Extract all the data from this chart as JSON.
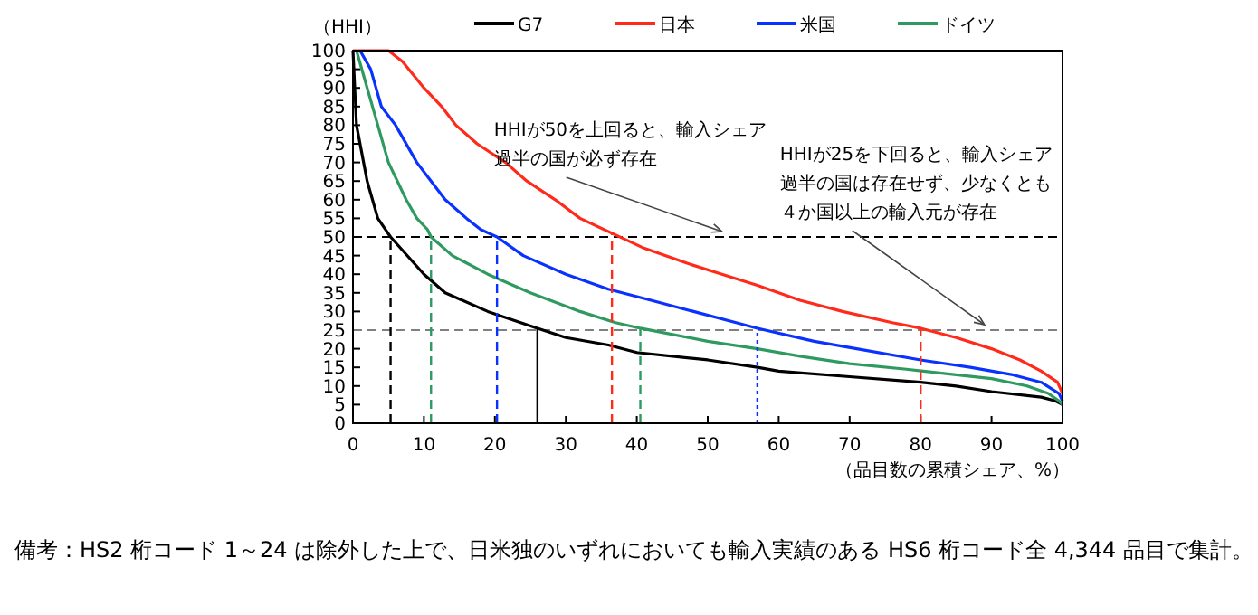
{
  "chart_data": {
    "type": "line",
    "ylabel": "（HHI）",
    "xlabel": "（品目数の累積シェア、%）",
    "xlim": [
      0,
      100
    ],
    "xticks": [
      0,
      10,
      20,
      30,
      40,
      50,
      60,
      70,
      80,
      90,
      100
    ],
    "ylim": [
      0,
      100
    ],
    "yticks": [
      0,
      5,
      10,
      15,
      20,
      25,
      30,
      35,
      40,
      45,
      50,
      55,
      60,
      65,
      70,
      75,
      80,
      85,
      90,
      95,
      100
    ],
    "grid": false,
    "legend": "top",
    "marker": "none",
    "series": [
      {
        "name": "G7",
        "color": "#000000",
        "line_style": "solid",
        "x": [
          0,
          0.5,
          1,
          2,
          3.5,
          5.3,
          10,
          13,
          19,
          26,
          30,
          36,
          40,
          50,
          57,
          60,
          70,
          80,
          85,
          90,
          97,
          99,
          100
        ],
        "values": [
          100,
          80,
          75,
          65,
          55,
          50,
          40,
          35,
          30,
          25.5,
          23,
          21,
          19,
          17,
          15,
          14,
          12.5,
          11,
          10,
          8.5,
          7,
          6,
          5
        ]
      },
      {
        "name": "日本",
        "color": "#ff2a1a",
        "line_style": "solid",
        "x": [
          0,
          5,
          7,
          10,
          12.5,
          14.5,
          17.5,
          21.5,
          24.5,
          28.5,
          32,
          36.5,
          41,
          47,
          52,
          57,
          63,
          69,
          76,
          80,
          85,
          90,
          94,
          97,
          99.3,
          100
        ],
        "values": [
          100,
          100,
          97,
          90,
          85,
          80,
          75,
          70,
          65,
          60,
          55,
          51,
          47,
          43,
          40,
          37,
          33,
          30,
          27,
          25.5,
          23,
          20,
          17,
          14,
          11,
          8
        ]
      },
      {
        "name": "米国",
        "color": "#0a32ff",
        "line_style": "solid",
        "x": [
          1,
          2.5,
          4,
          6,
          9,
          11,
          13,
          16,
          18,
          20.3,
          24,
          30,
          36,
          42,
          48,
          54,
          57,
          65,
          71,
          80,
          87,
          93,
          97,
          99.5,
          100
        ],
        "values": [
          100,
          95,
          85,
          80,
          70,
          65,
          60,
          55,
          52,
          50,
          45,
          40,
          36,
          33,
          30,
          27,
          25.5,
          22,
          20,
          17,
          15,
          13,
          11,
          8,
          6
        ]
      },
      {
        "name": "ドイツ",
        "color": "#2e9a60",
        "line_style": "solid",
        "x": [
          0.5,
          2,
          3.5,
          5,
          7.5,
          9,
          10.5,
          11,
          14,
          19,
          25,
          32,
          37,
          40.5,
          50,
          57,
          63,
          70,
          78,
          85,
          90,
          95,
          98,
          99.5,
          100
        ],
        "values": [
          100,
          90,
          80,
          70,
          60,
          55,
          52,
          50,
          45,
          40,
          35,
          30,
          27,
          25.5,
          22,
          20,
          18,
          16,
          14.5,
          13,
          12,
          10,
          8,
          6,
          5
        ]
      },
      {
        "color": "#000000",
        "line_style": "dashed",
        "x": [
          5.3,
          5.3
        ],
        "values": [
          0,
          50
        ]
      },
      {
        "color": "#000000",
        "line_style": "solid",
        "x": [
          26,
          26
        ],
        "values": [
          0,
          25.5
        ]
      },
      {
        "color": "#2e9a60",
        "line_style": "dashed",
        "x": [
          11,
          11
        ],
        "values": [
          0,
          50
        ]
      },
      {
        "color": "#2e9a60",
        "line_style": "dashed",
        "x": [
          40.5,
          40.5
        ],
        "values": [
          0,
          25.5
        ]
      },
      {
        "color": "#0a32ff",
        "line_style": "dashed",
        "x": [
          20.3,
          20.3
        ],
        "values": [
          0,
          50
        ]
      },
      {
        "color": "#0a32ff",
        "line_style": "dotted",
        "x": [
          57,
          57
        ],
        "values": [
          0,
          25.5
        ]
      },
      {
        "color": "#ff2a1a",
        "line_style": "dashed",
        "x": [
          36.5,
          36.5
        ],
        "values": [
          0,
          51
        ]
      },
      {
        "color": "#ff2a1a",
        "line_style": "dashed",
        "x": [
          80,
          80
        ],
        "values": [
          0,
          25.5
        ]
      }
    ],
    "ref_lines": [
      {
        "axis": "y",
        "value": 50,
        "color": "#000000",
        "line_style": "dashed"
      },
      {
        "axis": "y",
        "value": 25,
        "color": "#808080",
        "line_style": "dashed"
      }
    ],
    "annotations": [
      {
        "text": "HHIが50を上回ると、輸入シェア過半の国が必ず存在",
        "x": 52,
        "y": 50
      },
      {
        "text": "HHIが25を下回ると、輸入シェア過半の国は存在せず、少なくとも４か国以上の輸入元が存在",
        "x": 89,
        "y": 25
      },
      "備考：HS2 桁コード 1～24 は除外した上で、日米独のいずれにおいても輸入実績のある HS6 桁コード全 4,344 品目で集計。"
    ]
  }
}
